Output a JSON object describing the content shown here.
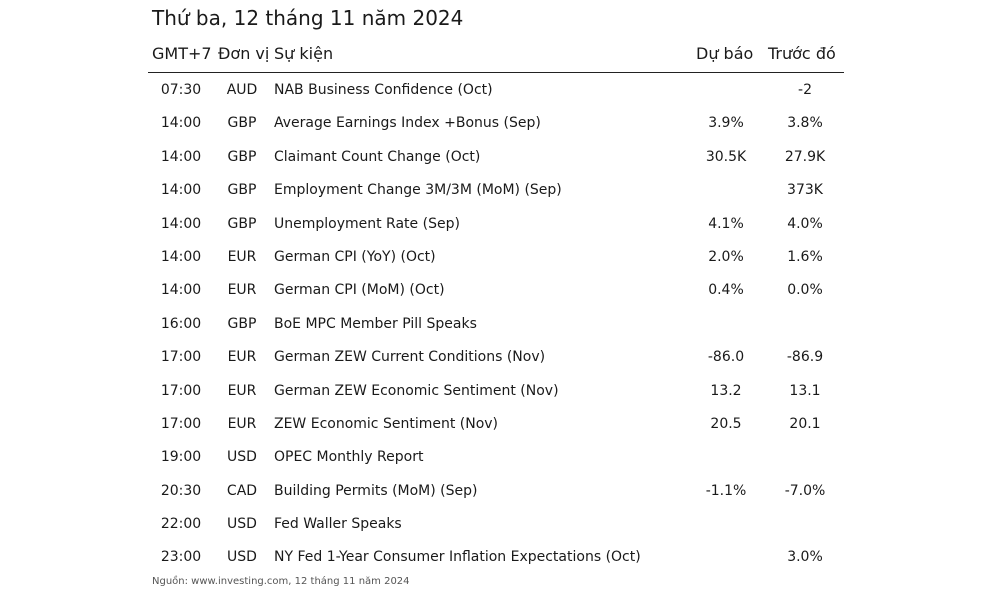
{
  "title": "Thứ ba, 12 tháng 11 năm 2024",
  "columns": {
    "time": "GMT+7",
    "currency": "Đơn vị",
    "event": "Sự kiện",
    "forecast": "Dự báo",
    "previous": "Trước đó"
  },
  "rows": [
    {
      "time": "07:30",
      "currency": "AUD",
      "event": "NAB Business Confidence (Oct)",
      "forecast": "",
      "previous": "-2"
    },
    {
      "time": "14:00",
      "currency": "GBP",
      "event": "Average Earnings Index +Bonus (Sep)",
      "forecast": "3.9%",
      "previous": "3.8%"
    },
    {
      "time": "14:00",
      "currency": "GBP",
      "event": "Claimant Count Change (Oct)",
      "forecast": "30.5K",
      "previous": "27.9K"
    },
    {
      "time": "14:00",
      "currency": "GBP",
      "event": "Employment Change 3M/3M (MoM) (Sep)",
      "forecast": "",
      "previous": "373K"
    },
    {
      "time": "14:00",
      "currency": "GBP",
      "event": "Unemployment Rate (Sep)",
      "forecast": "4.1%",
      "previous": "4.0%"
    },
    {
      "time": "14:00",
      "currency": "EUR",
      "event": "German CPI (YoY) (Oct)",
      "forecast": "2.0%",
      "previous": "1.6%"
    },
    {
      "time": "14:00",
      "currency": "EUR",
      "event": "German CPI (MoM) (Oct)",
      "forecast": "0.4%",
      "previous": "0.0%"
    },
    {
      "time": "16:00",
      "currency": "GBP",
      "event": "BoE MPC Member Pill Speaks",
      "forecast": "",
      "previous": ""
    },
    {
      "time": "17:00",
      "currency": "EUR",
      "event": "German ZEW Current Conditions (Nov)",
      "forecast": "-86.0",
      "previous": "-86.9"
    },
    {
      "time": "17:00",
      "currency": "EUR",
      "event": "German ZEW Economic Sentiment (Nov)",
      "forecast": "13.2",
      "previous": "13.1"
    },
    {
      "time": "17:00",
      "currency": "EUR",
      "event": "ZEW Economic Sentiment (Nov)",
      "forecast": "20.5",
      "previous": "20.1"
    },
    {
      "time": "19:00",
      "currency": "USD",
      "event": "OPEC Monthly Report",
      "forecast": "",
      "previous": ""
    },
    {
      "time": "20:30",
      "currency": "CAD",
      "event": "Building Permits (MoM) (Sep)",
      "forecast": "-1.1%",
      "previous": "-7.0%"
    },
    {
      "time": "22:00",
      "currency": "USD",
      "event": "Fed Waller Speaks",
      "forecast": "",
      "previous": ""
    },
    {
      "time": "23:00",
      "currency": "USD",
      "event": "NY Fed 1-Year Consumer Inflation Expectations (Oct)",
      "forecast": "",
      "previous": "3.0%"
    }
  ],
  "source": "Nguồn: www.investing.com, 12 tháng 11 năm 2024"
}
